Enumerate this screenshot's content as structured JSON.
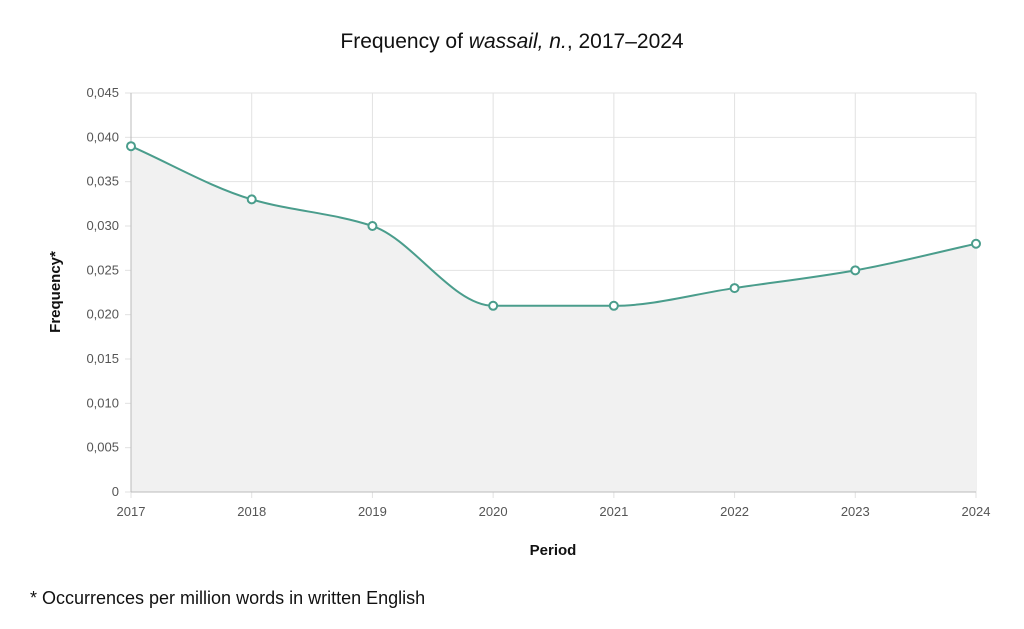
{
  "title": {
    "prefix": "Frequency of ",
    "word": "wassail, n.",
    "suffix": ", 2017–2024"
  },
  "footnote": "* Occurrences per million words in written English",
  "colors": {
    "line": "#4a9d8c",
    "area": "#f1f1f1",
    "grid": "#e2e2e2",
    "axis": "#bbbbbb"
  },
  "chart_data": {
    "type": "area",
    "x": [
      "2017",
      "2018",
      "2019",
      "2020",
      "2021",
      "2022",
      "2023",
      "2024"
    ],
    "series": [
      {
        "values": [
          0.039,
          0.033,
          0.03,
          0.021,
          0.021,
          0.023,
          0.025,
          0.028
        ]
      }
    ],
    "xlabel": "Period",
    "ylabel": "Frequency*",
    "ylim": [
      0,
      0.045
    ],
    "yticks": [
      "0",
      "0,005",
      "0,010",
      "0,015",
      "0,020",
      "0,025",
      "0,030",
      "0,035",
      "0,040",
      "0,045"
    ],
    "grid": true,
    "legend": "none",
    "line_style": "smooth",
    "markers": "hollow-circle"
  }
}
